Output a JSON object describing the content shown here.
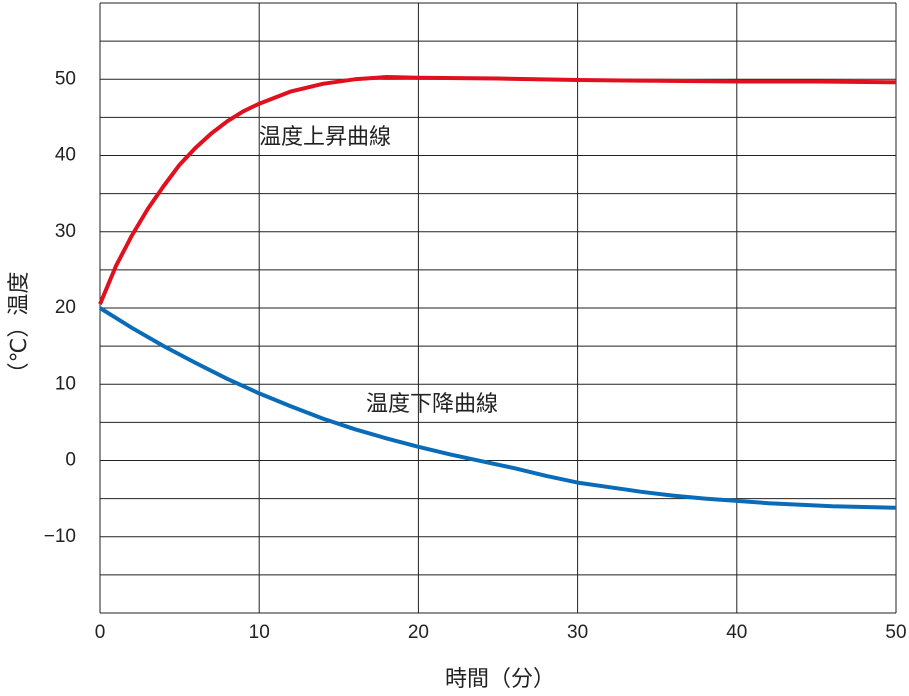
{
  "chart_data": {
    "type": "line",
    "x_label": "時間（分）",
    "y_label": "（℃）温度",
    "xlim": [
      0,
      50
    ],
    "xticks": [
      0,
      10,
      20,
      30,
      40,
      50
    ],
    "ylim": [
      -20,
      60
    ],
    "yticks": [
      {
        "value": -10,
        "label": "−10"
      },
      0,
      10,
      20,
      30,
      40,
      50
    ],
    "y_minor_grid": [
      -20,
      -15,
      -5,
      5,
      15,
      25,
      35,
      45,
      55,
      60
    ],
    "grid": true,
    "series": [
      {
        "name": "温度上昇曲線",
        "color": "#e0101e",
        "x": [
          0,
          1,
          2,
          3,
          4,
          5,
          6,
          7,
          8,
          9,
          10,
          12,
          14,
          16,
          18,
          20,
          25,
          30,
          35,
          40,
          45,
          50
        ],
        "values": [
          20.5,
          25.5,
          29.5,
          33,
          36,
          38.8,
          41,
          42.9,
          44.5,
          45.8,
          46.8,
          48.4,
          49.4,
          50,
          50.3,
          50.2,
          50.1,
          49.9,
          49.8,
          49.7,
          49.7,
          49.6
        ]
      },
      {
        "name": "温度下降曲線",
        "color": "#0a6cb8",
        "x": [
          0,
          2,
          4,
          6,
          8,
          10,
          12,
          14,
          16,
          18,
          20,
          22,
          24,
          26,
          28,
          30,
          32,
          34,
          36,
          38,
          40,
          42,
          44,
          46,
          48,
          50
        ],
        "values": [
          20,
          17.4,
          15,
          12.8,
          10.7,
          8.8,
          7.1,
          5.5,
          4.1,
          2.9,
          1.8,
          0.8,
          -0.1,
          -1,
          -2,
          -2.9,
          -3.5,
          -4.1,
          -4.6,
          -5,
          -5.3,
          -5.6,
          -5.8,
          -6,
          -6.1,
          -6.2
        ]
      }
    ]
  }
}
